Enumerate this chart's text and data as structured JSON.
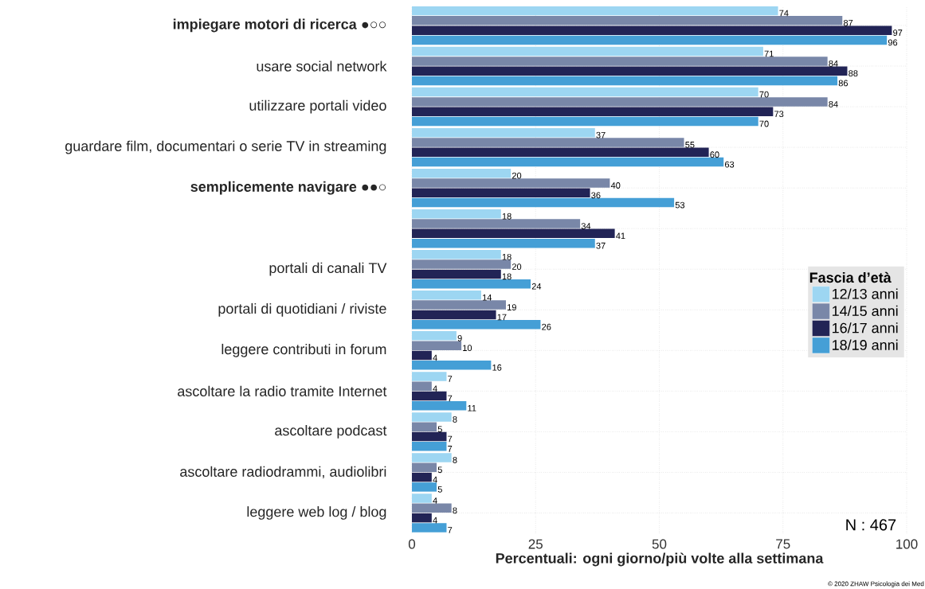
{
  "chart_data": {
    "type": "bar",
    "orientation": "horizontal",
    "xlabel": "Percentuali: ogni giorno/più volte alla settimana",
    "legend_title": "Fascia d’età",
    "categories": [
      "**impiegare motori di ricerca** ●○○",
      "usare social network",
      "utilizzare portali video",
      "guardare film, documentari o serie TV in streaming",
      "**semplicemente navigare** ●●○",
      null,
      "portali di canali TV",
      "portali di quotidiani / riviste",
      "leggere contributi in forum",
      "ascoltare la radio tramite Internet",
      "ascoltare podcast",
      "ascoltare radiodrammi, audiolibri",
      "leggere web log / blog"
    ],
    "series": [
      {
        "name": "12/13 anni",
        "color": "#9dd6f2",
        "values": [
          74,
          71,
          70,
          37,
          20,
          18,
          18,
          14,
          9,
          7,
          8,
          8,
          4
        ]
      },
      {
        "name": "14/15 anni",
        "color": "#7987a8",
        "values": [
          87,
          84,
          84,
          55,
          40,
          34,
          20,
          19,
          10,
          4,
          5,
          5,
          8
        ]
      },
      {
        "name": "16/17 anni",
        "color": "#222456",
        "values": [
          97,
          88,
          73,
          60,
          36,
          41,
          18,
          17,
          4,
          7,
          7,
          4,
          4
        ]
      },
      {
        "name": "18/19 anni",
        "color": "#459fd6",
        "values": [
          96,
          86,
          70,
          63,
          53,
          37,
          24,
          26,
          16,
          11,
          7,
          5,
          7
        ]
      }
    ],
    "xlim": [
      0,
      100
    ],
    "xticks": [
      0,
      25,
      50,
      75,
      100
    ],
    "grid": true,
    "legend": "right",
    "data_labels": true,
    "annotations": [
      "N : 467",
      "© 2020 ZHAW Psicologia dei Med"
    ]
  }
}
